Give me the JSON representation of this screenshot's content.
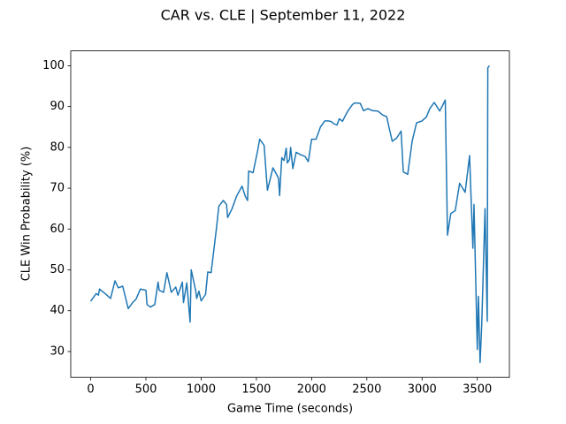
{
  "chart_data": {
    "type": "line",
    "title": "CAR vs. CLE | September 11, 2022",
    "x_label": "Game Time (seconds)",
    "y_label": "CLE Win Probability (%)",
    "xlim": [
      -180.5,
      3790.5
    ],
    "ylim": [
      23.67,
      103.64
    ],
    "xticks": [
      0,
      500,
      1000,
      1500,
      2000,
      2500,
      3000,
      3500
    ],
    "yticks": [
      30,
      40,
      50,
      60,
      70,
      80,
      90,
      100
    ],
    "grid": false,
    "series": [
      {
        "color": "#1f77b4",
        "x": [
          0,
          50,
          70,
          80,
          130,
          180,
          220,
          250,
          290,
          340,
          380,
          410,
          450,
          500,
          510,
          540,
          580,
          610,
          620,
          660,
          690,
          730,
          770,
          790,
          830,
          840,
          870,
          900,
          910,
          950,
          960,
          980,
          1000,
          1040,
          1060,
          1090,
          1140,
          1160,
          1200,
          1230,
          1240,
          1280,
          1320,
          1370,
          1400,
          1420,
          1430,
          1470,
          1510,
          1530,
          1570,
          1600,
          1650,
          1680,
          1700,
          1710,
          1730,
          1750,
          1770,
          1780,
          1800,
          1810,
          1830,
          1860,
          1900,
          1940,
          1970,
          2000,
          2040,
          2080,
          2120,
          2150,
          2180,
          2200,
          2230,
          2250,
          2280,
          2300,
          2330,
          2370,
          2390,
          2440,
          2470,
          2510,
          2550,
          2600,
          2640,
          2680,
          2700,
          2730,
          2770,
          2810,
          2830,
          2870,
          2910,
          2950,
          3000,
          3040,
          3070,
          3110,
          3160,
          3210,
          3230,
          3260,
          3300,
          3340,
          3390,
          3430,
          3460,
          3470,
          3500,
          3510,
          3525,
          3540,
          3570,
          3590,
          3595,
          3610
        ],
        "values": [
          42.3,
          44.2,
          43.8,
          45.3,
          44.2,
          43.0,
          47.3,
          45.6,
          46.0,
          40.5,
          42.0,
          42.8,
          45.3,
          45.0,
          41.5,
          40.9,
          41.5,
          47.0,
          45.0,
          44.5,
          49.3,
          44.5,
          45.8,
          43.8,
          47.0,
          42.0,
          46.8,
          37.2,
          50.0,
          45.0,
          43.0,
          44.8,
          42.4,
          44.0,
          49.5,
          49.3,
          60.5,
          65.6,
          67.0,
          66.0,
          62.8,
          65.0,
          68.0,
          70.5,
          68.0,
          67.0,
          74.2,
          73.8,
          79.0,
          82.0,
          80.5,
          69.5,
          75.0,
          73.5,
          72.5,
          68.2,
          77.5,
          76.8,
          79.8,
          76.2,
          77.0,
          80.0,
          74.8,
          78.8,
          78.2,
          77.8,
          76.5,
          82.0,
          82.0,
          85.0,
          86.5,
          86.5,
          86.3,
          85.8,
          85.5,
          87.0,
          86.4,
          87.5,
          89.0,
          90.5,
          90.9,
          90.8,
          89.0,
          89.5,
          89.0,
          88.9,
          88.0,
          87.5,
          85.0,
          81.5,
          82.3,
          84.0,
          74.0,
          73.4,
          81.5,
          86.0,
          86.5,
          87.5,
          89.5,
          91.0,
          88.9,
          91.6,
          58.5,
          63.8,
          64.5,
          71.2,
          69.0,
          78.0,
          55.3,
          66.0,
          30.5,
          43.5,
          27.3,
          36.5,
          65.0,
          37.4,
          99.5,
          100
        ]
      }
    ]
  }
}
